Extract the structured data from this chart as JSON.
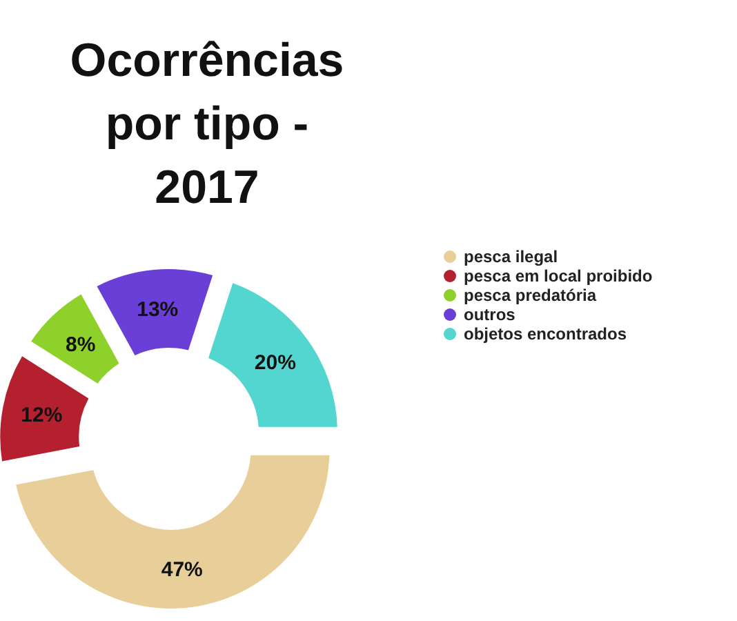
{
  "chart_data": {
    "type": "donut",
    "title": "Ocorrências por tipo - 2017",
    "categories": [
      "pesca ilegal",
      "pesca em local proibido",
      "pesca predatória",
      "outros",
      "objetos encontrados"
    ],
    "values": [
      47,
      12,
      8,
      13,
      20
    ],
    "colors": [
      "#e8cf9a",
      "#b5202e",
      "#8fd12b",
      "#6a3fd8",
      "#52d6cf"
    ],
    "value_labels": [
      "47%",
      "12%",
      "8%",
      "13%",
      "20%"
    ],
    "legend": "right"
  }
}
